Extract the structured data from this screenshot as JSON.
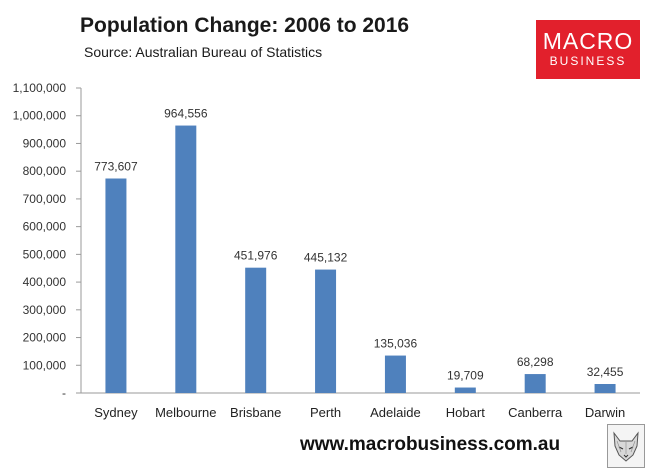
{
  "header": {
    "title": "Population Change: 2006 to 2016",
    "subtitle": "Source: Australian Bureau of Statistics"
  },
  "logo": {
    "line1": "MACRO",
    "line2": "BUSINESS",
    "color": "#e2202c"
  },
  "footer": {
    "website": "www.macrobusiness.com.au",
    "mascot_icon": "fox-sketch-icon"
  },
  "chart_data": {
    "type": "bar",
    "title": "Population Change: 2006 to 2016",
    "subtitle": "Source: Australian Bureau of Statistics",
    "xlabel": "",
    "ylabel": "",
    "categories": [
      "Sydney",
      "Melbourne",
      "Brisbane",
      "Perth",
      "Adelaide",
      "Hobart",
      "Canberra",
      "Darwin"
    ],
    "values": [
      773607,
      964556,
      451976,
      445132,
      135036,
      19709,
      68298,
      32455
    ],
    "data_labels": [
      "773,607",
      "964,556",
      "451,976",
      "445,132",
      "135,036",
      "19,709",
      "68,298",
      "32,455"
    ],
    "ylim": [
      0,
      1100000
    ],
    "yticks": [
      0,
      100000,
      200000,
      300000,
      400000,
      500000,
      600000,
      700000,
      800000,
      900000,
      1000000,
      1100000
    ],
    "ytick_labels": [
      "-",
      "100,000",
      "200,000",
      "300,000",
      "400,000",
      "500,000",
      "600,000",
      "700,000",
      "800,000",
      "900,000",
      "1,000,000",
      "1,100,000"
    ],
    "bar_color": "#4f81bd",
    "grid": false,
    "legend": "none"
  }
}
